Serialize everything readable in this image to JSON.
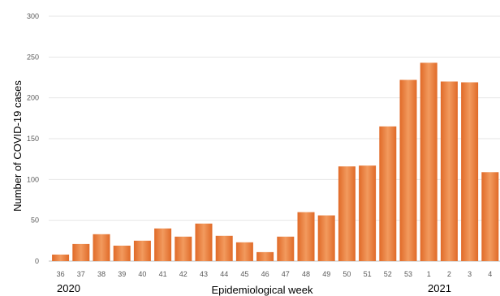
{
  "chart_data": {
    "type": "bar",
    "title": "",
    "xlabel": "Epidemiological week",
    "ylabel": "Number of COVID-19 cases",
    "ylim": [
      0,
      300
    ],
    "yticks": [
      0,
      50,
      100,
      150,
      200,
      250,
      300
    ],
    "grid": true,
    "categories": [
      "36",
      "37",
      "38",
      "39",
      "40",
      "41",
      "42",
      "43",
      "44",
      "45",
      "46",
      "47",
      "48",
      "49",
      "50",
      "51",
      "52",
      "53",
      "1",
      "2",
      "3",
      "4"
    ],
    "values": [
      8,
      21,
      33,
      19,
      25,
      40,
      30,
      46,
      31,
      23,
      11,
      30,
      60,
      56,
      116,
      117,
      165,
      222,
      243,
      220,
      219,
      109
    ],
    "year_labels": [
      "2020",
      "2021"
    ],
    "bar_color": "#E8783A"
  }
}
